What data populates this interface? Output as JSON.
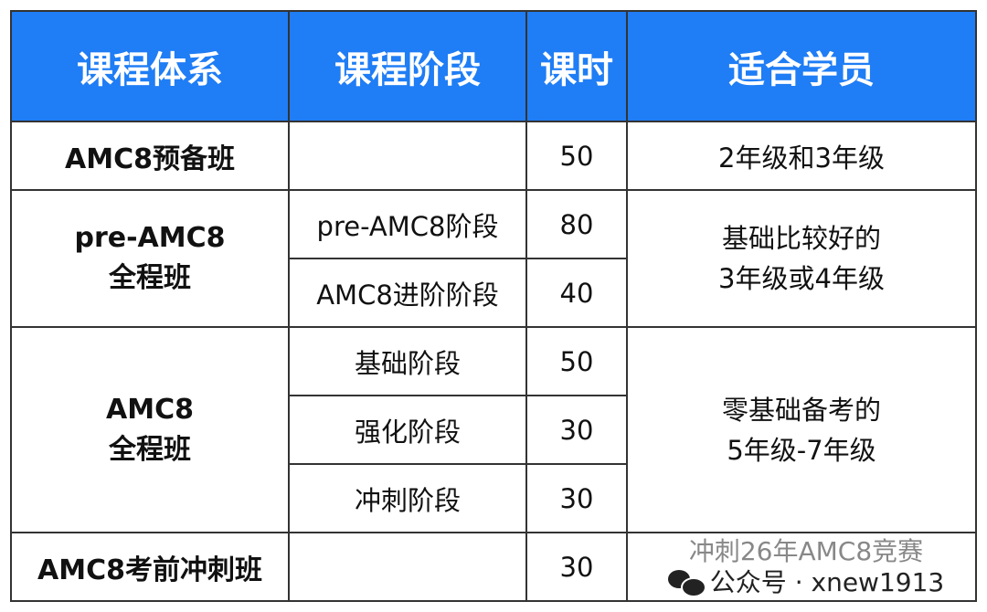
{
  "headers": [
    "课程体系",
    "课程阶段",
    "课时",
    "适合学员"
  ],
  "theme": {
    "header_bg": "#1f7df5",
    "header_text": "#ffffff",
    "border": "#333333"
  },
  "rows": {
    "prep": {
      "system": "AMC8预备班",
      "stage": "",
      "hours": "50",
      "students": "2年级和3年级"
    },
    "pre": {
      "system_line1": "pre-AMC8",
      "system_line2": "全程班",
      "stages": [
        {
          "stage": "pre-AMC8阶段",
          "hours": "80"
        },
        {
          "stage": "AMC8进阶阶段",
          "hours": "40"
        }
      ],
      "students_line1": "基础比较好的",
      "students_line2": "3年级或4年级"
    },
    "full": {
      "system_line1": "AMC8",
      "system_line2": "全程班",
      "stages": [
        {
          "stage": "基础阶段",
          "hours": "50"
        },
        {
          "stage": "强化阶段",
          "hours": "30"
        },
        {
          "stage": "冲刺阶段",
          "hours": "30"
        }
      ],
      "students_line1": "零基础备考的",
      "students_line2": "5年级-7年级"
    },
    "sprint": {
      "system": "AMC8考前冲刺班",
      "stage": "",
      "hours": "30",
      "students": ""
    }
  },
  "watermark": {
    "line1": "冲刺26年AMC8竞赛",
    "line2": "公众号 · xnew1913",
    "icon": "wechat-icon"
  }
}
